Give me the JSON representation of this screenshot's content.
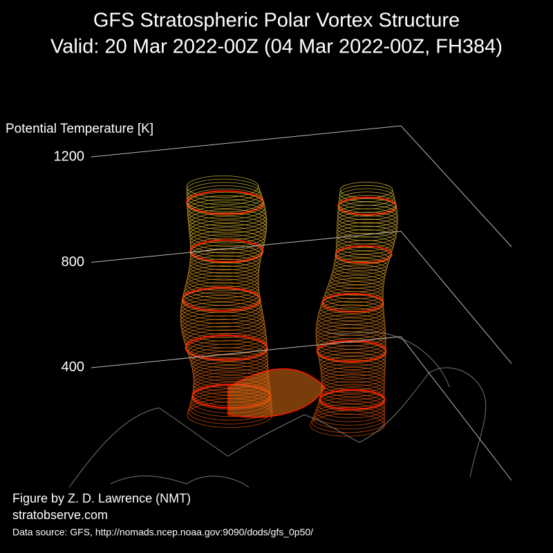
{
  "chart_data": {
    "type": "vortex3d",
    "title": "GFS Stratospheric Polar Vortex Structure",
    "subtitle": "Valid: 20 Mar 2022-00Z  (04 Mar 2022-00Z, FH384)",
    "zlabel": "Potential Temperature [K]",
    "zlim": [
      350,
      1200
    ],
    "zticks": [
      400,
      800,
      1200
    ],
    "grid": true,
    "credits": [
      "Figure by Z. D. Lawrence (NMT)",
      "stratobserve.com"
    ],
    "source": "Data source: GFS, http://nomads.ncep.noaa.gov:9090/dods/gfs_0p50/"
  }
}
